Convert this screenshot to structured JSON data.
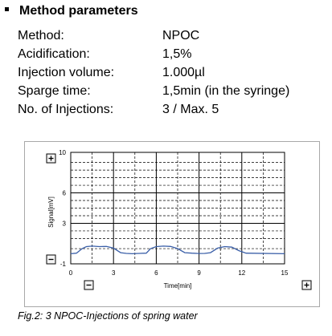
{
  "section": {
    "title": "Method parameters"
  },
  "parameters": [
    {
      "label": "Method:",
      "value": "NPOC"
    },
    {
      "label": "Acidification:",
      "value": "1,5%"
    },
    {
      "label": "Injection volume:",
      "value": "1.000µl"
    },
    {
      "label": "Sparge time:",
      "value": "1,5min (in the syringe)"
    },
    {
      "label": "No. of Injections:",
      "value": "3 / Max. 5"
    }
  ],
  "chart_data": {
    "type": "line",
    "xlabel": "Time[min]",
    "ylabel": "Signal[mV]",
    "xlim": [
      0,
      15
    ],
    "ylim": [
      -1,
      10
    ],
    "xticks": [
      0,
      3,
      6,
      9,
      12,
      15
    ],
    "yticks": [
      -1,
      3,
      6,
      10
    ],
    "grid": true,
    "controls": {
      "zoom_in": "+",
      "zoom_out": "−"
    },
    "series": [
      {
        "color": "#3a5fa8",
        "x": [
          0,
          0.4,
          0.8,
          1.1,
          1.5,
          2.0,
          2.5,
          3.0,
          3.5,
          3.9,
          4.3,
          4.8,
          5.3,
          5.6,
          6.0,
          6.5,
          7.0,
          7.5,
          8.0,
          8.5,
          9.0,
          9.4,
          9.8,
          10.3,
          10.8,
          11.3,
          11.8,
          12.3,
          15.0
        ],
        "y": [
          0,
          0.05,
          0.5,
          0.7,
          0.75,
          0.7,
          0.72,
          0.55,
          0.1,
          0.03,
          0.0,
          0.03,
          0.05,
          0.5,
          0.7,
          0.75,
          0.72,
          0.5,
          0.1,
          0.05,
          0.02,
          0.03,
          0.1,
          0.55,
          0.7,
          0.65,
          0.3,
          0.05,
          0.0
        ]
      }
    ]
  },
  "caption": "Fig.2: 3 NPOC-Injections of spring water"
}
